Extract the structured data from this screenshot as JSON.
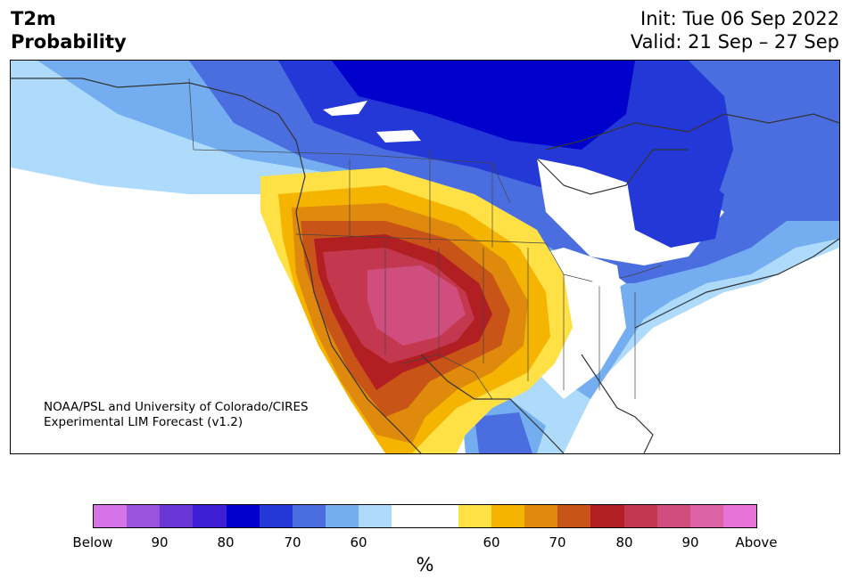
{
  "header": {
    "title_line1": "T2m",
    "title_line2": "Probability",
    "init_line": "Init: Tue 06 Sep 2022",
    "valid_line": "Valid: 21 Sep – 27 Sep"
  },
  "credit": {
    "line1": "NOAA/PSL and University of Colorado/CIRES",
    "line2": "Experimental LIM Forecast (v1.2)"
  },
  "colorbar": {
    "unit": "%",
    "colors": [
      "#d673e8",
      "#9b53de",
      "#6a37d6",
      "#3d1fd6",
      "#0000cd",
      "#2438d8",
      "#4a6ee0",
      "#74aef0",
      "#aedbfb",
      "#ffffff",
      "#ffffff",
      "#ffe045",
      "#f4b400",
      "#df8a0c",
      "#c85417",
      "#b21f22",
      "#c4384f",
      "#d04e7e",
      "#dd62a6",
      "#e873d8"
    ],
    "tick_labels": [
      "Below",
      "90",
      "80",
      "70",
      "60",
      "60",
      "70",
      "80",
      "90",
      "Above"
    ]
  },
  "colors": {
    "below_60": "#aedbfb",
    "below_70": "#74aef0",
    "below_80": "#4a6ee0",
    "below_90": "#2438d8",
    "below_max": "#0000cd",
    "above_60": "#ffe045",
    "above_70": "#df8a0c",
    "above_80": "#b21f22",
    "above_90": "#d04e7e"
  }
}
